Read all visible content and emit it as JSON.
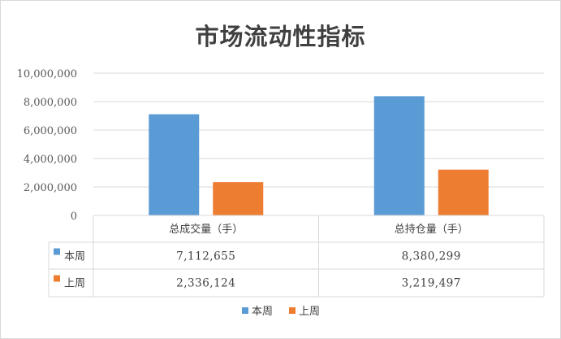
{
  "chart_data": {
    "type": "bar",
    "title": "市场流动性指标",
    "categories": [
      "总成交量（手）",
      "总持仓量（手）"
    ],
    "series": [
      {
        "name": "本周",
        "color": "#5b9bd5",
        "values": [
          7112655,
          8380299
        ],
        "labels": [
          "7,112,655",
          "8,380,299"
        ]
      },
      {
        "name": "上周",
        "color": "#ed7d31",
        "values": [
          2336124,
          3219497
        ],
        "labels": [
          "2,336,124",
          "3,219,497"
        ]
      }
    ],
    "ylim": [
      0,
      10000000
    ],
    "yticks": [
      0,
      2000000,
      4000000,
      6000000,
      8000000,
      10000000
    ],
    "ytick_labels": [
      "0",
      "2,000,000",
      "4,000,000",
      "6,000,000",
      "8,000,000",
      "10,000,000"
    ],
    "grid": true,
    "data_table": true,
    "legend_position": "bottom"
  }
}
